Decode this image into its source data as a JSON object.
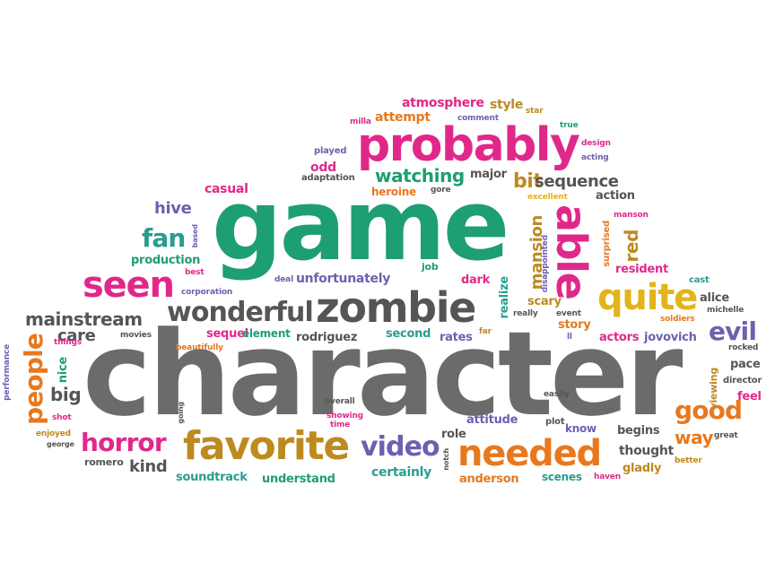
{
  "colors": {
    "gray": "#6b6b6b",
    "green": "#1e9e74",
    "pink": "#e0288a",
    "orange": "#e8781e",
    "purple": "#6f5fb0",
    "gold": "#bd8a1f",
    "teal": "#2a9d8f",
    "dark": "#4b4b4b"
  },
  "words": {
    "character": "character",
    "game": "game",
    "probably": "probably",
    "zombie": "zombie",
    "favorite": "favorite",
    "needed": "needed",
    "seen": "seen",
    "wonderful": "wonderful",
    "quite": "quite",
    "able": "able",
    "people": "people",
    "horror": "horror",
    "video": "video",
    "good": "good",
    "evil": "evil",
    "fan": "fan",
    "watching": "watching",
    "mainstream": "mainstream",
    "bit": "bit",
    "sequence": "sequence",
    "mansion": "mansion",
    "red": "red",
    "hive": "hive",
    "big": "big",
    "care": "care",
    "kind": "kind",
    "way": "way",
    "atmosphere": "atmosphere",
    "style": "style",
    "attempt": "attempt",
    "casual": "casual",
    "odd": "odd",
    "heroine": "heroine",
    "major": "major",
    "action": "action",
    "excellent": "excellent",
    "production": "production",
    "unfortunately": "unfortunately",
    "dark": "dark",
    "job": "job",
    "realize": "realize",
    "scary": "scary",
    "story": "story",
    "resident": "resident",
    "alice": "alice",
    "cast": "cast",
    "michelle": "michelle",
    "soldiers": "soldiers",
    "actors": "actors",
    "jovovich": "jovovich",
    "rocked": "rocked",
    "pace": "pace",
    "director": "director",
    "feel": "feel",
    "viewing": "viewing",
    "great": "great",
    "better": "better",
    "gladly": "gladly",
    "thought": "thought",
    "begins": "begins",
    "know": "know",
    "attitude": "attitude",
    "plot": "plot",
    "easily": "easily",
    "role": "role",
    "anderson": "anderson",
    "scenes": "scenes",
    "haven": "haven",
    "notch": "notch",
    "certainly": "certainly",
    "understand": "understand",
    "soundtrack": "soundtrack",
    "romero": "romero",
    "george": "george",
    "enjoyed": "enjoyed",
    "shot": "shot",
    "nice": "nice",
    "things": "things",
    "performance": "performance",
    "movies": "movies",
    "beautifully": "beautifully",
    "sequel": "sequel",
    "element": "element",
    "rodriguez": "rodriguez",
    "second": "second",
    "rates": "rates",
    "far": "far",
    "really": "really",
    "event": "event",
    "ll": "ll",
    "deal": "deal",
    "corporation": "corporation",
    "best": "best",
    "based": "based",
    "played": "played",
    "adaptation": "adaptation",
    "milla": "milla",
    "comment": "comment",
    "star": "star",
    "true": "true",
    "design": "design",
    "acting": "acting",
    "manson": "manson",
    "surprised": "surprised",
    "disappointed": "disappointed",
    "gore": "gore",
    "overall": "overall",
    "showing": "showing",
    "time": "time",
    "going": "going"
  }
}
